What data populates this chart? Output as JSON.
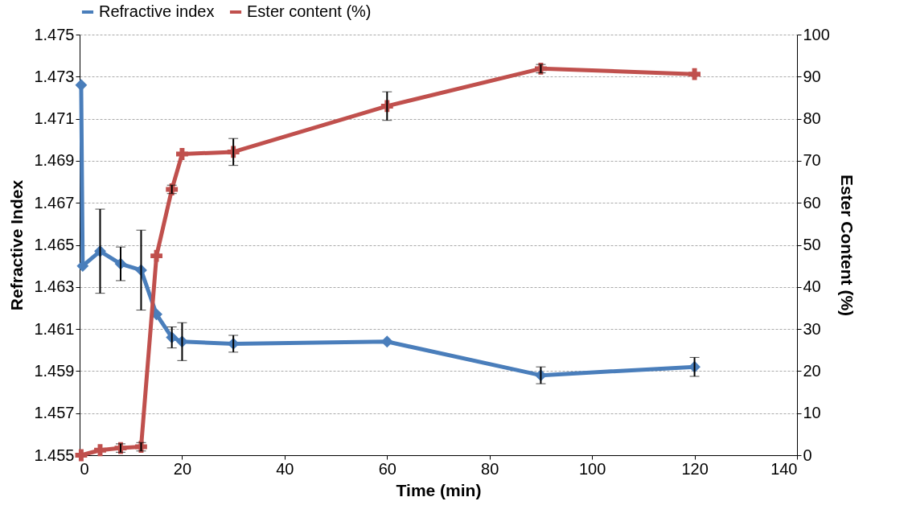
{
  "chart_data": {
    "type": "line",
    "xlabel": "Time (min)",
    "ylabel": "Refractive Index",
    "y2label": "Ester Content (%)",
    "xlim": [
      0,
      140
    ],
    "xticks": [
      0,
      20,
      40,
      60,
      80,
      100,
      120,
      140
    ],
    "ylim": [
      1.455,
      1.475
    ],
    "yticks": [
      1.455,
      1.457,
      1.459,
      1.461,
      1.463,
      1.465,
      1.467,
      1.469,
      1.471,
      1.473,
      1.475
    ],
    "y2lim": [
      0,
      100
    ],
    "y2ticks": [
      0,
      10,
      20,
      30,
      40,
      50,
      60,
      70,
      80,
      90,
      100
    ],
    "grid": "y",
    "legend": "top",
    "series": [
      {
        "name": "Refractive index",
        "color": "#4a7ebb",
        "marker": "diamond",
        "x": [
          0.3,
          0.6,
          4,
          8,
          12,
          15,
          18,
          20,
          30,
          60,
          90,
          120
        ],
        "values": [
          1.4726,
          1.464,
          1.4647,
          1.4641,
          1.4638,
          1.4617,
          1.4606,
          1.4604,
          1.4603,
          1.4604,
          1.4588,
          1.4592
        ],
        "errors": [
          null,
          null,
          0.002,
          0.0008,
          0.0019,
          null,
          0.0005,
          0.0009,
          0.0004,
          null,
          0.0004,
          0.00045
        ]
      },
      {
        "name": "Ester content (%)",
        "color": "#c0504d",
        "marker": "cross",
        "axis": "y2",
        "x": [
          0.3,
          4,
          8,
          12,
          15,
          18,
          20,
          30,
          60,
          90,
          120
        ],
        "values": [
          0,
          1.2,
          1.7,
          2,
          47.4,
          63.2,
          71.6,
          72.1,
          83,
          91.9,
          90.6
        ],
        "errors": [
          null,
          null,
          1,
          1,
          null,
          1,
          null,
          3.2,
          3.4,
          1,
          null
        ]
      }
    ]
  }
}
